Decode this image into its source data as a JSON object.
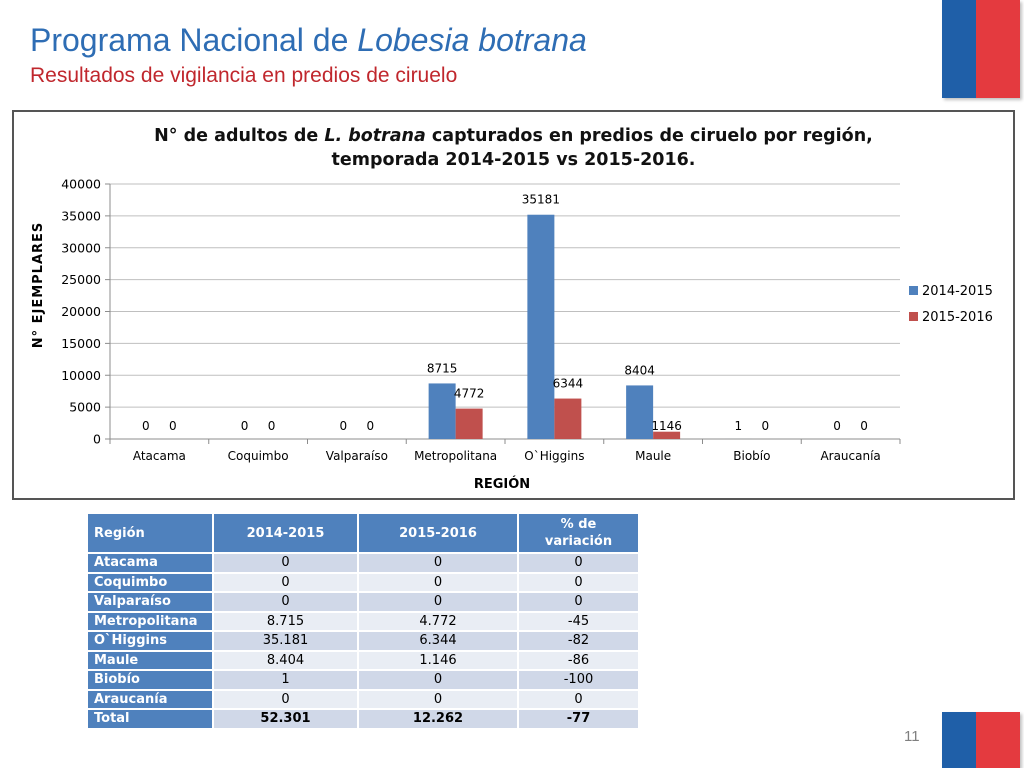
{
  "header": {
    "title_prefix": "Programa Nacional de ",
    "title_italic": "Lobesia botrana",
    "subtitle": "Resultados de vigilancia en predios de ciruelo"
  },
  "chart_data": {
    "type": "bar",
    "title_part1": "N° de adultos de ",
    "title_italic": "L. botrana",
    "title_part2": " capturados en predios de ciruelo por región,",
    "title_line2": "temporada 2014-2015 vs 2015-2016.",
    "xlabel": "REGIÓN",
    "ylabel": "N° EJEMPLARES",
    "ylim": [
      0,
      40000
    ],
    "yticks": [
      0,
      5000,
      10000,
      15000,
      20000,
      25000,
      30000,
      35000,
      40000
    ],
    "grid": true,
    "legend_position": "right",
    "categories": [
      "Atacama",
      "Coquimbo",
      "Valparaíso",
      "Metropolitana",
      "O`Higgins",
      "Maule",
      "Biobío",
      "Araucanía"
    ],
    "series": [
      {
        "name": "2014-2015",
        "color": "#4f81bd",
        "values": [
          0,
          0,
          0,
          8715,
          35181,
          8404,
          1,
          0
        ]
      },
      {
        "name": "2015-2016",
        "color": "#c0504d",
        "values": [
          0,
          0,
          0,
          4772,
          6344,
          1146,
          0,
          0
        ]
      }
    ]
  },
  "table": {
    "headers": [
      "Región",
      "2014-2015",
      "2015-2016",
      "% de variación"
    ],
    "rows": [
      {
        "region": "Atacama",
        "a": "0",
        "b": "0",
        "pct": "0"
      },
      {
        "region": "Coquimbo",
        "a": "0",
        "b": "0",
        "pct": "0"
      },
      {
        "region": "Valparaíso",
        "a": "0",
        "b": "0",
        "pct": "0"
      },
      {
        "region": "Metropolitana",
        "a": "8.715",
        "b": "4.772",
        "pct": "-45"
      },
      {
        "region": "O`Higgins",
        "a": "35.181",
        "b": "6.344",
        "pct": "-82"
      },
      {
        "region": "Maule",
        "a": "8.404",
        "b": "1.146",
        "pct": "-86"
      },
      {
        "region": "Biobío",
        "a": "1",
        "b": "0",
        "pct": "-100"
      },
      {
        "region": "Araucanía",
        "a": "0",
        "b": "0",
        "pct": "0"
      }
    ],
    "total": {
      "region": "Total",
      "a": "52.301",
      "b": "12.262",
      "pct": "-77"
    }
  },
  "footer": {
    "page_number": "11"
  }
}
